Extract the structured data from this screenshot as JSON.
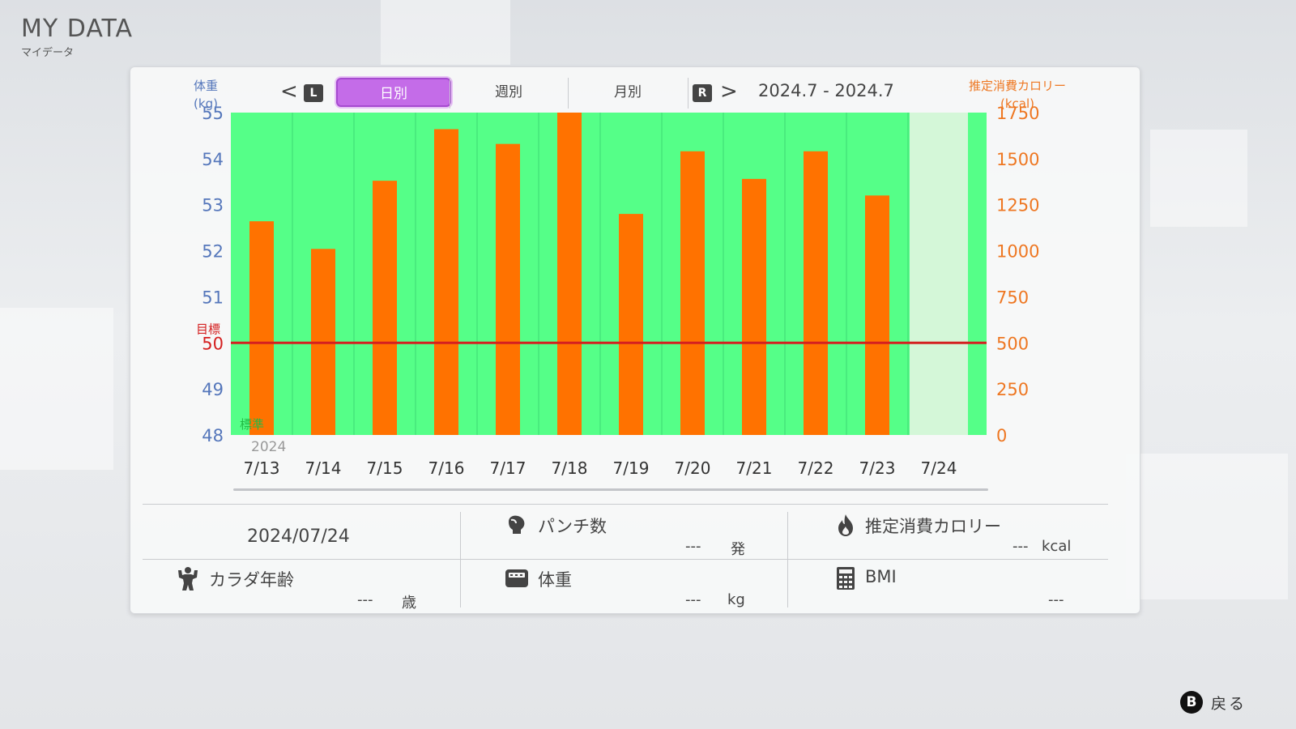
{
  "header": {
    "title": "MY DATA",
    "subtitle": "マイデータ"
  },
  "nav": {
    "prev_glyph": "<",
    "next_glyph": ">",
    "l_button": "L",
    "r_button": "R",
    "tabs": [
      {
        "label": "日別",
        "active": true
      },
      {
        "label": "週別",
        "active": false
      },
      {
        "label": "月別",
        "active": false
      }
    ],
    "range": "2024.7 - 2024.7"
  },
  "axes": {
    "left_title_line1": "体重",
    "left_title_line2": "(kg)",
    "right_title_line1": "推定消費カロリー",
    "right_title_line2": "(kcal)",
    "target_label": "目標",
    "standard_label": "標準",
    "year_label": "2024"
  },
  "chart_data": {
    "type": "bar",
    "categories": [
      "7/13",
      "7/14",
      "7/15",
      "7/16",
      "7/17",
      "7/18",
      "7/19",
      "7/20",
      "7/21",
      "7/22",
      "7/23",
      "7/24"
    ],
    "series": [
      {
        "values": [
          1160,
          1010,
          1380,
          1660,
          1580,
          1750,
          1200,
          1540,
          1390,
          1540,
          1300,
          null
        ],
        "color": "#ff7200",
        "axis": "right"
      }
    ],
    "y_left": {
      "ylim": [
        48,
        55
      ],
      "ticks": [
        48,
        49,
        50,
        51,
        52,
        53,
        54,
        55
      ],
      "color": "#5577bb"
    },
    "y_right": {
      "ylim": [
        0,
        1750
      ],
      "ticks": [
        0,
        250,
        500,
        750,
        1000,
        1250,
        1500,
        1750
      ],
      "color": "#ee7722"
    },
    "target_weight": 50,
    "target_color": "#d42020",
    "background_color": "#55ff88",
    "highlight_category": "7/24"
  },
  "stats": {
    "date": "2024/07/24",
    "punch_label": "パンチ数",
    "punch_value": "---",
    "punch_unit": "発",
    "calorie_label": "推定消費カロリー",
    "calorie_value": "---",
    "calorie_unit": "kcal",
    "body_age_label": "カラダ年齢",
    "body_age_value": "---",
    "body_age_unit": "歳",
    "weight_label": "体重",
    "weight_value": "---",
    "weight_unit": "kg",
    "bmi_label": "BMI",
    "bmi_value": "---"
  },
  "footer": {
    "back_button": "B",
    "back_label": "戻る"
  }
}
